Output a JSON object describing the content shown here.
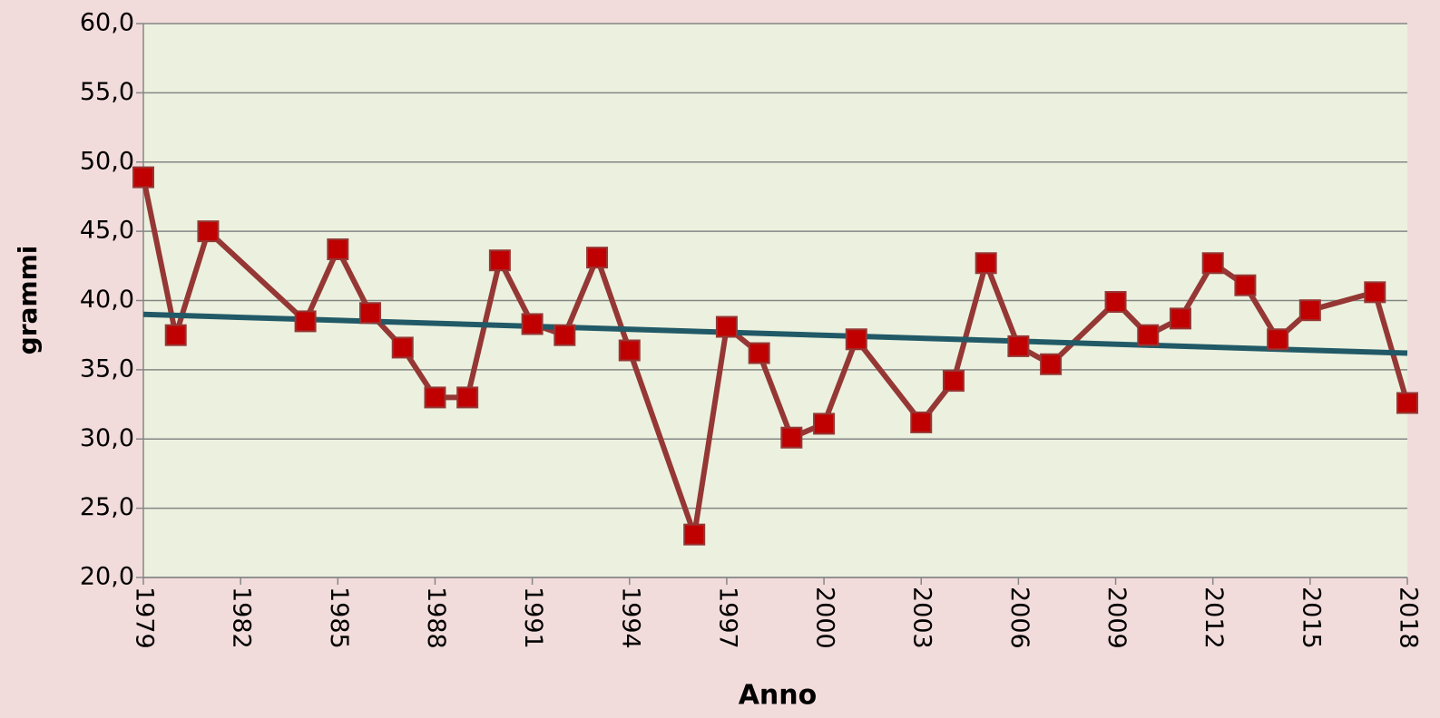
{
  "chart_data": {
    "type": "line",
    "x_label": "Anno",
    "y_label": "grammi",
    "x": [
      1979,
      1980,
      1981,
      1984,
      1985,
      1986,
      1987,
      1988,
      1989,
      1990,
      1991,
      1992,
      1993,
      1994,
      1996,
      1997,
      1998,
      1999,
      2000,
      2001,
      2003,
      2004,
      2005,
      2006,
      2007,
      2009,
      2010,
      2011,
      2012,
      2013,
      2014,
      2015,
      2017,
      2018
    ],
    "series": [
      {
        "color": "#953735",
        "marker_color": "#c00000",
        "values": [
          48.9,
          37.5,
          45.0,
          38.5,
          43.7,
          39.1,
          36.6,
          33.0,
          33.0,
          42.9,
          38.3,
          37.5,
          43.1,
          36.4,
          23.1,
          38.1,
          36.2,
          30.1,
          31.1,
          37.2,
          31.2,
          34.2,
          42.7,
          36.7,
          35.4,
          39.9,
          37.5,
          38.7,
          42.7,
          41.1,
          37.2,
          39.3,
          40.6,
          32.6
        ]
      }
    ],
    "trend": {
      "color": "#215967",
      "x": [
        1979,
        2018
      ],
      "values": [
        39.0,
        36.2
      ]
    },
    "xlim": [
      1979,
      2018
    ],
    "xticks": [
      1979,
      1982,
      1985,
      1988,
      1991,
      1994,
      1997,
      2000,
      2003,
      2006,
      2009,
      2012,
      2015,
      2018
    ],
    "ylim": [
      20,
      60
    ],
    "yticks": [
      {
        "value": 20,
        "label": "20,0"
      },
      {
        "value": 25,
        "label": "25,0"
      },
      {
        "value": 30,
        "label": "30,0"
      },
      {
        "value": 35,
        "label": "35,0"
      },
      {
        "value": 40,
        "label": "40,0"
      },
      {
        "value": 45,
        "label": "45,0"
      },
      {
        "value": 50,
        "label": "50,0"
      },
      {
        "value": 55,
        "label": "55,0"
      },
      {
        "value": 60,
        "label": "60,0"
      }
    ],
    "grid": true
  }
}
